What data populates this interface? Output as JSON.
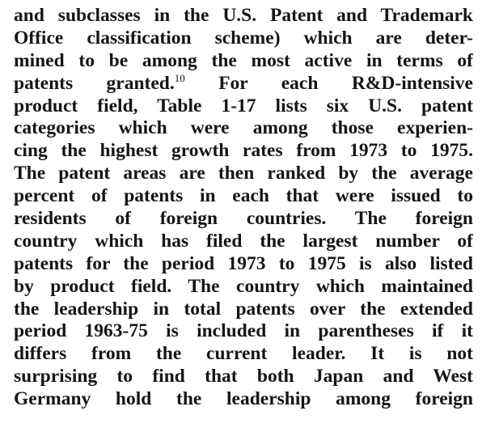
{
  "paragraph": {
    "lines": [
      "and subclasses in the U.S. Patent and Trademark",
      "Office classification scheme) which are deter-",
      "mined to be among the most active in terms of",
      null,
      "product field, Table 1-17 lists six U.S. patent",
      "categories which were among those experien-",
      "cing the highest growth rates from 1973 to 1975.",
      "The patent areas are then ranked by the average",
      "percent of patents in each that were issued to",
      "residents of foreign countries. The foreign",
      "country which has filed the largest number of",
      "patents for the period 1973 to 1975 is also listed",
      "by product field. The country which maintained",
      "the leadership in total patents over the extended",
      "period 1963-75 is included in parentheses if it",
      "differs from the current leader. It is not",
      "surprising to find that both Japan and West",
      "Germany hold the leadership among foreign"
    ],
    "footnote_line": {
      "before": "patents granted.",
      "note": "10",
      "after": " For each R&D-intensive"
    }
  }
}
